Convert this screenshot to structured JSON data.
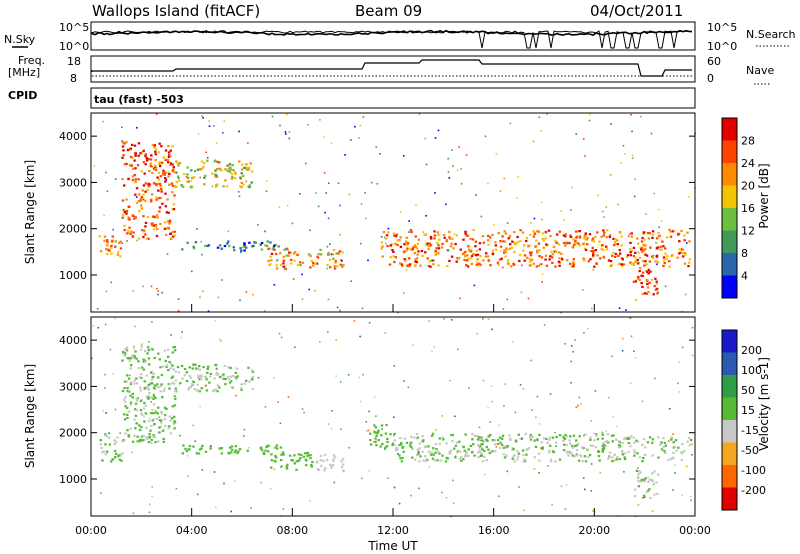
{
  "header": {
    "station": "Wallops Island (fitACF)",
    "beam": "Beam 09",
    "date": "04/Oct/2011"
  },
  "strip_labels": {
    "nsky": "N.Sky",
    "freq_line1": "Freq.",
    "freq_line2": "[MHz]",
    "cpid": "CPID",
    "nsearch": "N.Search",
    "nave": "Nave",
    "cpid_value": "tau (fast) -503"
  },
  "strip_ticks": {
    "noise_left": [
      "10^5",
      "10^0"
    ],
    "noise_right": [
      "10^5",
      "10^0"
    ],
    "freq_left": [
      "18",
      "8"
    ],
    "freq_right": [
      "60",
      "0"
    ]
  },
  "colors": {
    "power_scale": [
      "#0000ff",
      "#2a66aa",
      "#3f9a5a",
      "#6fbf3f",
      "#f5c400",
      "#ff8a00",
      "#ff4400",
      "#e00000"
    ],
    "velocity_scale": [
      "#e00000",
      "#ff6600",
      "#f5a623",
      "#c8c8c8",
      "#55bb33",
      "#2e9e4a",
      "#2a5ab0",
      "#1a1acc"
    ]
  },
  "chart_data": [
    {
      "type": "heatmap",
      "name": "power",
      "ylabel": "Slant Range [km]",
      "ylim": [
        200,
        4500
      ],
      "yticks": [
        1000,
        2000,
        3000,
        4000
      ],
      "x_ticks": [
        "00:00",
        "04:00",
        "08:00",
        "12:00",
        "16:00",
        "20:00",
        "00:00"
      ],
      "colorbar_label": "Power [dB]",
      "colorbar_ticks": [
        "4",
        "8",
        "12",
        "16",
        "20",
        "24",
        "28"
      ],
      "colorbar_range": [
        0,
        30
      ],
      "bands": [
        {
          "t0": 0.3,
          "t1": 1.2,
          "r0": 1400,
          "r1": 1900,
          "value": 20
        },
        {
          "t0": 1.2,
          "t1": 3.3,
          "r0": 1800,
          "r1": 3900,
          "value": 24
        },
        {
          "t0": 3.3,
          "t1": 6.4,
          "r0": 2900,
          "r1": 3500,
          "value": 16
        },
        {
          "t0": 3.5,
          "t1": 7.8,
          "r0": 1550,
          "r1": 1750,
          "value": 8
        },
        {
          "t0": 7.0,
          "t1": 10.0,
          "r0": 1150,
          "r1": 1600,
          "value": 20
        },
        {
          "t0": 11.5,
          "t1": 23.8,
          "r0": 1200,
          "r1": 2000,
          "value": 22
        },
        {
          "t0": 21.5,
          "t1": 22.5,
          "r0": 600,
          "r1": 1200,
          "value": 26
        }
      ]
    },
    {
      "type": "heatmap",
      "name": "velocity",
      "ylabel": "Slant Range [km]",
      "xlabel": "Time UT",
      "ylim": [
        200,
        4500
      ],
      "yticks": [
        1000,
        2000,
        3000,
        4000
      ],
      "x_ticks": [
        "00:00",
        "04:00",
        "08:00",
        "12:00",
        "16:00",
        "20:00",
        "00:00"
      ],
      "colorbar_label": "Velocity [m s-1]",
      "colorbar_ticks": [
        "-200",
        "-100",
        "-50",
        "-15",
        "15",
        "50",
        "100",
        "200"
      ],
      "colorbar_range": [
        -250,
        250
      ],
      "bands": [
        {
          "t0": 0.3,
          "t1": 1.2,
          "r0": 1400,
          "r1": 2000,
          "value": 0
        },
        {
          "t0": 1.2,
          "t1": 3.3,
          "r0": 1800,
          "r1": 3900,
          "value": 0
        },
        {
          "t0": 3.3,
          "t1": 6.4,
          "r0": 2900,
          "r1": 3500,
          "value": 0
        },
        {
          "t0": 3.5,
          "t1": 7.8,
          "r0": 1550,
          "r1": 1750,
          "value": 40
        },
        {
          "t0": 7.0,
          "t1": 8.8,
          "r0": 1200,
          "r1": 1600,
          "value": 40
        },
        {
          "t0": 8.8,
          "t1": 10.0,
          "r0": 1150,
          "r1": 1550,
          "value": -40
        },
        {
          "t0": 11.0,
          "t1": 12.0,
          "r0": 1700,
          "r1": 2200,
          "value": 40
        },
        {
          "t0": 12.0,
          "t1": 23.8,
          "r0": 1400,
          "r1": 2000,
          "value": 0
        },
        {
          "t0": 21.5,
          "t1": 22.5,
          "r0": 600,
          "r1": 1200,
          "value": 0
        }
      ]
    }
  ]
}
